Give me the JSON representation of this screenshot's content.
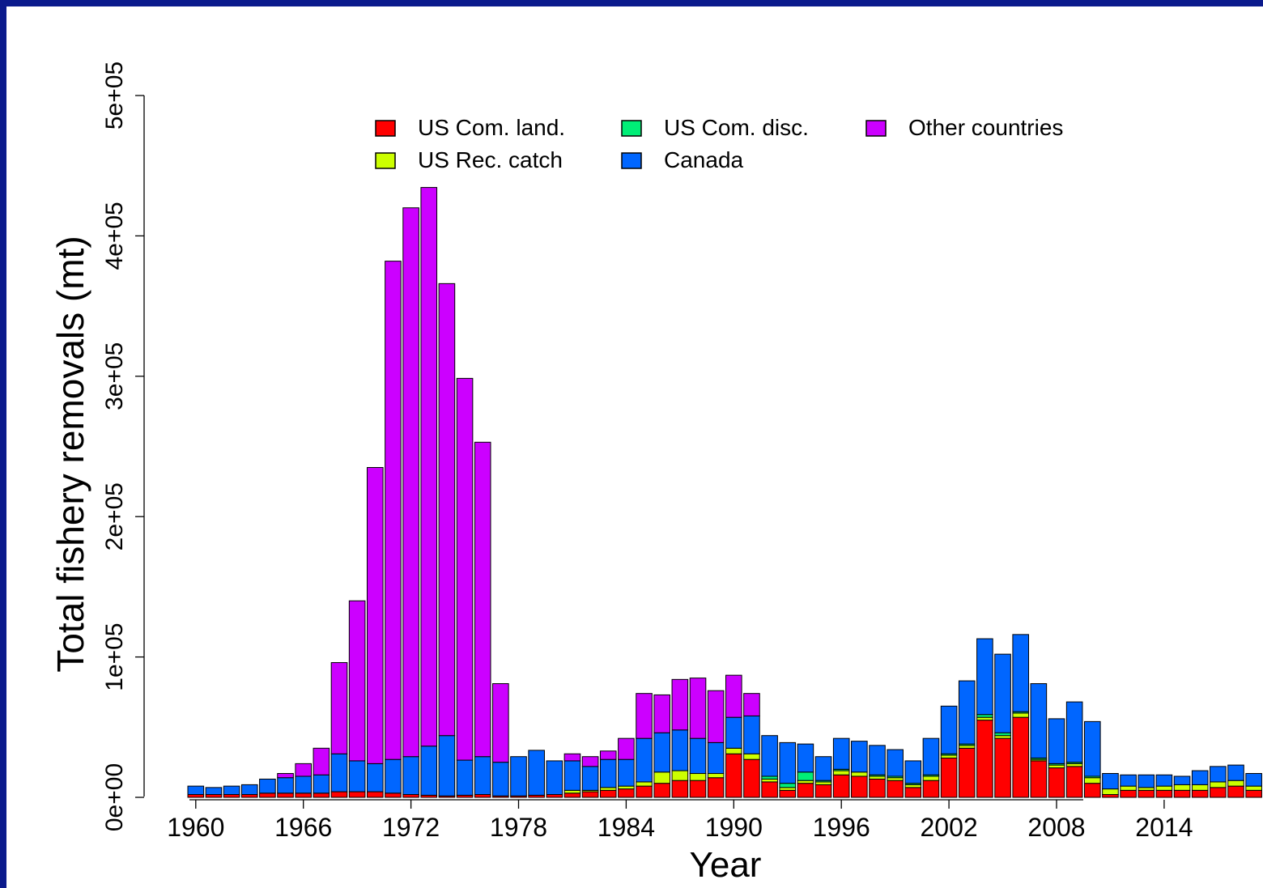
{
  "chart_data": {
    "type": "bar",
    "stacked": true,
    "title": "",
    "xlabel": "Year",
    "ylabel": "Total fishery removals (mt)",
    "ylim": [
      0,
      500000
    ],
    "y_ticks": [
      0,
      100000,
      200000,
      300000,
      400000,
      500000
    ],
    "y_tick_labels": [
      "0e+00",
      "1e+05",
      "2e+05",
      "3e+05",
      "4e+05",
      "5e+05"
    ],
    "x_tick_labels": [
      "1960",
      "1966",
      "1972",
      "1978",
      "1984",
      "1990",
      "1996",
      "2002",
      "2008",
      "2014"
    ],
    "grid": false,
    "legend_position": "top",
    "categories": [
      "1960",
      "1961",
      "1962",
      "1963",
      "1964",
      "1965",
      "1966",
      "1967",
      "1968",
      "1969",
      "1970",
      "1971",
      "1972",
      "1973",
      "1974",
      "1975",
      "1976",
      "1977",
      "1978",
      "1979",
      "1980",
      "1981",
      "1982",
      "1983",
      "1984",
      "1985",
      "1986",
      "1987",
      "1988",
      "1989",
      "1990",
      "1991",
      "1992",
      "1993",
      "1994",
      "1995",
      "1996",
      "1997",
      "1998",
      "1999",
      "2000",
      "2001",
      "2002",
      "2003",
      "2004",
      "2005",
      "2006",
      "2007",
      "2008",
      "2009",
      "2010",
      "2011",
      "2012",
      "2013",
      "2014",
      "2015",
      "2016",
      "2017",
      "2018",
      "2019"
    ],
    "series": [
      {
        "name": "US Com. land.",
        "color": "#ff0000",
        "values": [
          2000,
          2000,
          2000,
          2000,
          3000,
          3000,
          3000,
          3000,
          4000,
          4000,
          4000,
          3000,
          2000,
          1500,
          1000,
          1500,
          2000,
          1000,
          1000,
          1500,
          2000,
          3000,
          4000,
          5000,
          6000,
          8000,
          10000,
          12000,
          12000,
          14000,
          31000,
          27000,
          11000,
          5000,
          10000,
          9000,
          16000,
          15000,
          13000,
          12000,
          7000,
          12000,
          28000,
          35000,
          55000,
          42000,
          57000,
          26000,
          21000,
          22000,
          10000,
          2000,
          5000,
          5000,
          5000,
          5000,
          5000,
          7000,
          8000,
          5000
        ]
      },
      {
        "name": "US Rec. catch",
        "color": "#ccff00",
        "values": [
          0,
          0,
          0,
          0,
          0,
          0,
          0,
          0,
          0,
          0,
          0,
          0,
          0,
          0,
          0,
          0,
          0,
          0,
          0,
          0,
          0,
          2000,
          1000,
          2000,
          2000,
          3000,
          8000,
          7000,
          5000,
          3000,
          4000,
          4000,
          2000,
          2000,
          2000,
          2000,
          3000,
          3000,
          2000,
          2000,
          2000,
          3000,
          2000,
          2000,
          2000,
          2000,
          3000,
          1000,
          2000,
          2000,
          4000,
          4000,
          3000,
          2000,
          3000,
          4000,
          4000,
          4000,
          4000,
          3000
        ]
      },
      {
        "name": "US Com. disc.",
        "color": "#00ee77",
        "values": [
          0,
          0,
          0,
          0,
          0,
          0,
          0,
          0,
          0,
          0,
          0,
          0,
          0,
          0,
          0,
          0,
          0,
          0,
          0,
          0,
          0,
          0,
          0,
          0,
          0,
          0,
          0,
          0,
          0,
          0,
          0,
          0,
          2000,
          3000,
          6000,
          1000,
          1000,
          0,
          1000,
          1000,
          1000,
          1000,
          1000,
          1000,
          2000,
          2000,
          1000,
          1000,
          1000,
          1000,
          1000,
          0,
          0,
          0,
          0,
          0,
          0,
          0,
          0,
          0
        ]
      },
      {
        "name": "Canada",
        "color": "#0066ff",
        "values": [
          6000,
          5000,
          6000,
          7000,
          10000,
          11000,
          12000,
          13000,
          27000,
          22000,
          20000,
          24000,
          27000,
          35000,
          43000,
          25000,
          27000,
          24000,
          28000,
          32000,
          24000,
          21000,
          17000,
          20000,
          19000,
          31000,
          28000,
          29000,
          25000,
          22000,
          22000,
          27000,
          29000,
          29000,
          20000,
          17000,
          22000,
          22000,
          21000,
          19000,
          16000,
          26000,
          34000,
          45000,
          54000,
          56000,
          55000,
          53000,
          32000,
          43000,
          39000,
          11000,
          8000,
          9000,
          8000,
          6000,
          10000,
          11000,
          11000,
          9000
        ]
      },
      {
        "name": "Other countries",
        "color": "#cc00ff",
        "values": [
          0,
          0,
          0,
          0,
          0,
          3000,
          9000,
          19000,
          65000,
          114000,
          211000,
          355000,
          391000,
          398000,
          322000,
          272000,
          224000,
          56000,
          0,
          0,
          0,
          5000,
          7000,
          6000,
          15000,
          32000,
          27000,
          36000,
          43000,
          37000,
          30000,
          16000,
          0,
          0,
          0,
          0,
          0,
          0,
          0,
          0,
          0,
          0,
          0,
          0,
          0,
          0,
          0,
          0,
          0,
          0,
          0,
          0,
          0,
          0,
          0,
          0,
          0,
          0,
          0,
          0
        ]
      }
    ]
  },
  "legend_labels": [
    "US Com. land.",
    "US Com. disc.",
    "Other countries",
    "US Rec. catch",
    "Canada"
  ]
}
